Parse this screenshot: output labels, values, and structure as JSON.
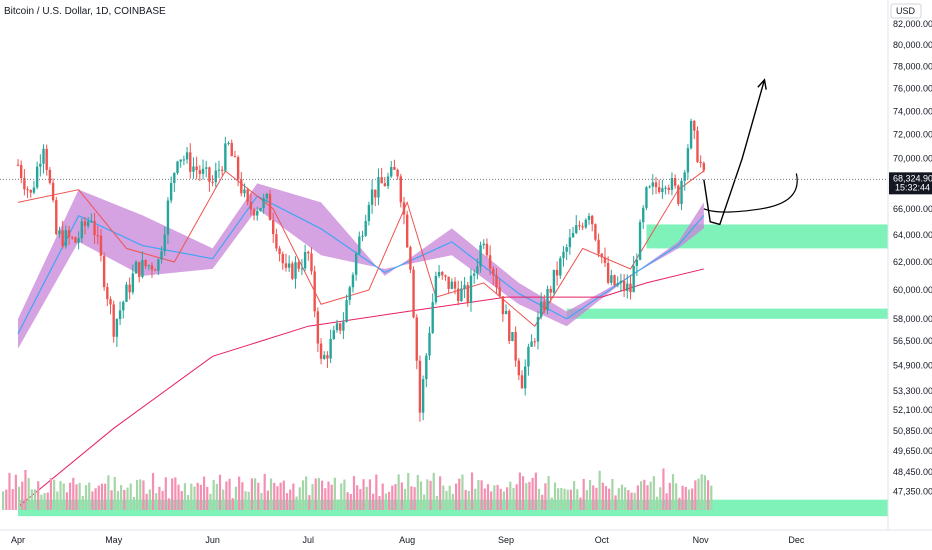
{
  "header": {
    "symbol_title": "Bitcoin / U.S. Dollar, 1D, COINBASE"
  },
  "price_axis": {
    "currency_label": "USD",
    "current_price_tag": "68,324.90",
    "countdown_tag": "15:32:44"
  },
  "colors": {
    "up_candle": "#26a69a",
    "down_candle": "#ef5350",
    "volume_up": "#a5d6a7",
    "volume_down": "#f48fb1",
    "band_fill": "#c783d8",
    "band_mid_line": "#42a5f5",
    "fast_ma": "#ef5350",
    "slow_ma": "#e91e63",
    "demand_zone": "#69f0ae",
    "current_price_line": "#787b86"
  },
  "chart_data": {
    "type": "candlestick",
    "title": "Bitcoin / U.S. Dollar, 1D, COINBASE",
    "xlabel": "",
    "ylabel": "",
    "ylim": [
      46000,
      85000
    ],
    "y_scale": "log",
    "grid": false,
    "y_ticks": [
      "82,000.00",
      "80,000.00",
      "78,000.00",
      "76,000.00",
      "74,000.00",
      "72,000.00",
      "70,000.00",
      "68,000.00",
      "66,000.00",
      "64,000.00",
      "62,000.00",
      "60,000.00",
      "58,000.00",
      "56,500.00",
      "54,900.00",
      "53,300.00",
      "52,100.00",
      "50,850.00",
      "49,650.00",
      "48,450.00",
      "47,350.00"
    ],
    "x_ticks": [
      "Apr",
      "May",
      "Jun",
      "Jul",
      "Aug",
      "Sep",
      "Oct",
      "Nov",
      "Dec"
    ],
    "series": [
      {
        "type": "candles",
        "period": "1D",
        "trend_points": [
          {
            "x": "2024-04-01",
            "close": 69500
          },
          {
            "x": "2024-04-05",
            "close": 67000
          },
          {
            "x": "2024-04-09",
            "close": 71500
          },
          {
            "x": "2024-04-13",
            "close": 64000
          },
          {
            "x": "2024-04-19",
            "close": 63500
          },
          {
            "x": "2024-04-24",
            "close": 65500
          },
          {
            "x": "2024-05-01",
            "close": 57500
          },
          {
            "x": "2024-05-08",
            "close": 61500
          },
          {
            "x": "2024-05-15",
            "close": 62000
          },
          {
            "x": "2024-05-21",
            "close": 70500
          },
          {
            "x": "2024-06-01",
            "close": 68000
          },
          {
            "x": "2024-06-06",
            "close": 71000
          },
          {
            "x": "2024-06-12",
            "close": 66000
          },
          {
            "x": "2024-06-18",
            "close": 66500
          },
          {
            "x": "2024-06-24",
            "close": 61000
          },
          {
            "x": "2024-07-01",
            "close": 62500
          },
          {
            "x": "2024-07-05",
            "close": 55000
          },
          {
            "x": "2024-07-12",
            "close": 58000
          },
          {
            "x": "2024-07-20",
            "close": 67000
          },
          {
            "x": "2024-07-29",
            "close": 69000
          },
          {
            "x": "2024-08-02",
            "close": 62000
          },
          {
            "x": "2024-08-05",
            "close": 52000
          },
          {
            "x": "2024-08-10",
            "close": 61000
          },
          {
            "x": "2024-08-20",
            "close": 59500
          },
          {
            "x": "2024-08-25",
            "close": 64000
          },
          {
            "x": "2024-09-01",
            "close": 58000
          },
          {
            "x": "2024-09-06",
            "close": 54000
          },
          {
            "x": "2024-09-12",
            "close": 58500
          },
          {
            "x": "2024-09-20",
            "close": 63000
          },
          {
            "x": "2024-09-27",
            "close": 66000
          },
          {
            "x": "2024-10-03",
            "close": 60500
          },
          {
            "x": "2024-10-10",
            "close": 60000
          },
          {
            "x": "2024-10-15",
            "close": 67000
          },
          {
            "x": "2024-10-21",
            "close": 68500
          },
          {
            "x": "2024-10-25",
            "close": 67000
          },
          {
            "x": "2024-10-29",
            "close": 72500
          },
          {
            "x": "2024-11-01",
            "close": 69500
          },
          {
            "x": "2024-11-02",
            "close": 68324.9
          }
        ]
      },
      {
        "type": "ma_band",
        "upper": [
          {
            "x": "2024-04-01",
            "y": 58000
          },
          {
            "x": "2024-04-20",
            "y": 67500
          },
          {
            "x": "2024-05-10",
            "y": 65500
          },
          {
            "x": "2024-06-01",
            "y": 63000
          },
          {
            "x": "2024-06-15",
            "y": 68000
          },
          {
            "x": "2024-07-05",
            "y": 66500
          },
          {
            "x": "2024-07-25",
            "y": 61000
          },
          {
            "x": "2024-08-15",
            "y": 64500
          },
          {
            "x": "2024-09-05",
            "y": 60500
          },
          {
            "x": "2024-09-20",
            "y": 58500
          },
          {
            "x": "2024-10-10",
            "y": 61000
          },
          {
            "x": "2024-10-25",
            "y": 63500
          },
          {
            "x": "2024-11-02",
            "y": 66500
          }
        ],
        "lower": [
          {
            "x": "2024-04-01",
            "y": 56000
          },
          {
            "x": "2024-04-20",
            "y": 63500
          },
          {
            "x": "2024-05-10",
            "y": 61000
          },
          {
            "x": "2024-06-01",
            "y": 61500
          },
          {
            "x": "2024-06-15",
            "y": 66000
          },
          {
            "x": "2024-07-05",
            "y": 62500
          },
          {
            "x": "2024-07-25",
            "y": 61500
          },
          {
            "x": "2024-08-15",
            "y": 62500
          },
          {
            "x": "2024-09-05",
            "y": 59000
          },
          {
            "x": "2024-09-20",
            "y": 57500
          },
          {
            "x": "2024-10-10",
            "y": 61000
          },
          {
            "x": "2024-10-25",
            "y": 63000
          },
          {
            "x": "2024-11-02",
            "y": 64500
          }
        ]
      },
      {
        "type": "ma",
        "role": "fast",
        "points": [
          {
            "x": "2024-04-01",
            "y": 66500
          },
          {
            "x": "2024-04-20",
            "y": 67500
          },
          {
            "x": "2024-05-05",
            "y": 63000
          },
          {
            "x": "2024-05-20",
            "y": 62000
          },
          {
            "x": "2024-06-05",
            "y": 69000
          },
          {
            "x": "2024-06-20",
            "y": 66000
          },
          {
            "x": "2024-07-05",
            "y": 59000
          },
          {
            "x": "2024-07-20",
            "y": 60000
          },
          {
            "x": "2024-08-01",
            "y": 66500
          },
          {
            "x": "2024-08-10",
            "y": 59500
          },
          {
            "x": "2024-08-25",
            "y": 60500
          },
          {
            "x": "2024-09-10",
            "y": 57500
          },
          {
            "x": "2024-09-25",
            "y": 63000
          },
          {
            "x": "2024-10-10",
            "y": 61500
          },
          {
            "x": "2024-10-25",
            "y": 67500
          },
          {
            "x": "2024-11-02",
            "y": 69000
          }
        ]
      },
      {
        "type": "ma",
        "role": "slow",
        "points": [
          {
            "x": "2024-04-01",
            "y": 46500
          },
          {
            "x": "2024-05-01",
            "y": 51000
          },
          {
            "x": "2024-06-01",
            "y": 55500
          },
          {
            "x": "2024-07-01",
            "y": 57500
          },
          {
            "x": "2024-08-01",
            "y": 58500
          },
          {
            "x": "2024-09-01",
            "y": 59500
          },
          {
            "x": "2024-10-01",
            "y": 59500
          },
          {
            "x": "2024-10-15",
            "y": 60500
          },
          {
            "x": "2024-11-02",
            "y": 61500
          }
        ]
      }
    ],
    "current_price": 68324.9,
    "zones": [
      {
        "name": "",
        "from": 63000,
        "to": 64800,
        "x_start": "2024-10-15",
        "extends_right": true
      },
      {
        "name": "",
        "from": 58000,
        "to": 58700,
        "x_start": "2024-09-20",
        "extends_right": true
      },
      {
        "name": "",
        "from": 46000,
        "to": 46900,
        "x_start": "2024-04-01",
        "extends_right": true
      }
    ],
    "projection_path": [
      {
        "x": "2024-11-02",
        "y": 68300
      },
      {
        "x": "2024-11-04",
        "y": 65000
      },
      {
        "x": "2024-11-07",
        "y": 64800
      },
      {
        "x": "2024-11-14",
        "y": 70000
      },
      {
        "x": "2024-11-21",
        "y": 76800
      }
    ],
    "projection_alt_path": [
      {
        "x": "2024-11-02",
        "y": 66000
      },
      {
        "x": "2024-11-07",
        "y": 65500
      },
      {
        "x": "2024-11-20",
        "y": 66000
      },
      {
        "x": "2024-12-01",
        "y": 68800
      }
    ],
    "volume": {
      "relative_heights": [
        0.6,
        0.4,
        0.7,
        0.5,
        0.8,
        0.3,
        0.5,
        0.9,
        0.6,
        0.4,
        0.7,
        0.5,
        0.3,
        0.6,
        0.5,
        0.8,
        0.4,
        0.6,
        0.5,
        0.7
      ]
    }
  }
}
